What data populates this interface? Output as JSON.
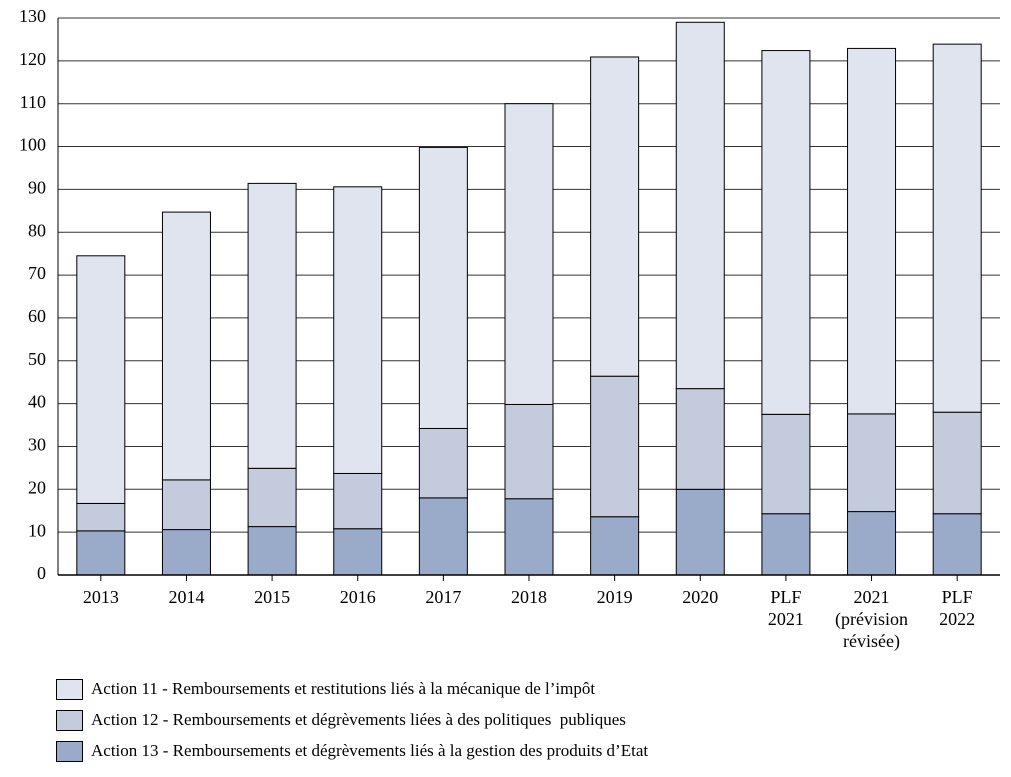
{
  "chart_data": {
    "type": "stacked_bar",
    "categories": [
      "2013",
      "2014",
      "2015",
      "2016",
      "2017",
      "2018",
      "2019",
      "2020",
      "PLF\n2021",
      "2021\n(prévision\nrévisée)",
      "PLF\n2022"
    ],
    "series": [
      {
        "name": "Action 11 - Remboursements et restitutions liés à la mécanique de l’impôt",
        "color": "#dfe4ee",
        "values": [
          57.8,
          62.5,
          66.5,
          66.9,
          65.6,
          70.2,
          74.5,
          85.5,
          84.9,
          85.3,
          85.9
        ]
      },
      {
        "name": "Action 12 - Remboursements et dégrèvements liées à des politiques  publiques",
        "color": "#c3cbdc",
        "values": [
          6.4,
          11.6,
          13.6,
          12.9,
          16.2,
          22.0,
          32.8,
          23.5,
          23.2,
          22.8,
          23.7
        ]
      },
      {
        "name": "Action 13 - Remboursements et dégrèvements liés à la gestion des produits d’Etat",
        "color": "#9aabc9",
        "values": [
          10.3,
          10.6,
          11.3,
          10.8,
          18.0,
          17.8,
          13.6,
          20.0,
          14.3,
          14.8,
          14.3
        ]
      }
    ],
    "ylim": [
      0,
      130
    ],
    "yticks": [
      0,
      10,
      20,
      30,
      40,
      50,
      60,
      70,
      80,
      90,
      100,
      110,
      120,
      130
    ],
    "grid": true
  }
}
